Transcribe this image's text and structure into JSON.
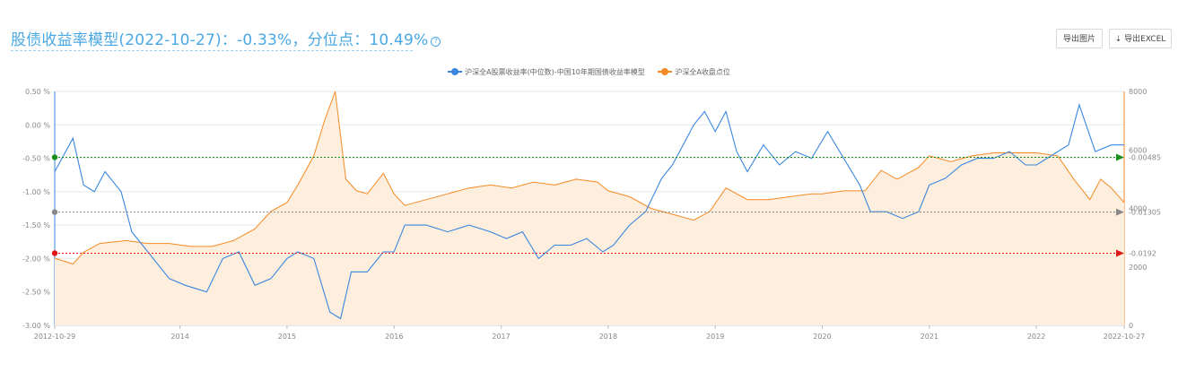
{
  "header": {
    "title_text": "股债收益率模型(2022-10-27)：-0.33%，分位点：10.49%",
    "help_glyph": "?",
    "export_image_label": "导出图片",
    "export_excel_label": "⇣ 导出EXCEL"
  },
  "colors": {
    "series_blue": "#3a87e0",
    "series_orange": "#f58a24",
    "area_fill": "#fdeedd",
    "line_green": "#1a8f1a",
    "line_gray": "#888888",
    "line_red": "#e01818",
    "title": "#4aa8e6"
  },
  "chart_data": {
    "type": "line",
    "x_start_label": "2012-10-29",
    "x_end_label": "2022-10-27",
    "x_ticks": [
      "2012-10-29",
      "2014",
      "2015",
      "2016",
      "2017",
      "2018",
      "2019",
      "2020",
      "2021",
      "2022",
      "2022-10-27"
    ],
    "y_left": {
      "ticks": [
        "0.50 %",
        "0.00 %",
        "-0.50 %",
        "-1.00 %",
        "-1.50 %",
        "-2.00 %",
        "-2.50 %",
        "-3.00 %"
      ],
      "range": [
        -3.0,
        0.5
      ],
      "unit": "%"
    },
    "y_right": {
      "ticks": [
        "8000",
        "6000",
        "4000",
        "2000",
        "0"
      ],
      "range": [
        0,
        8000
      ]
    },
    "legend": [
      "沪深全A股票收益率(中位数)-中国10年期国债收益率模型",
      "沪深全A收盘点位"
    ],
    "series": [
      {
        "name": "沪深全A股票收益率(中位数)-中国10年期国债收益率模型",
        "axis": "left",
        "x": [
          2012.83,
          2013.0,
          2013.1,
          2013.2,
          2013.3,
          2013.45,
          2013.55,
          2013.7,
          2013.9,
          2014.05,
          2014.25,
          2014.4,
          2014.55,
          2014.7,
          2014.85,
          2015.0,
          2015.1,
          2015.25,
          2015.4,
          2015.5,
          2015.6,
          2015.75,
          2015.9,
          2016.0,
          2016.1,
          2016.3,
          2016.5,
          2016.7,
          2016.9,
          2017.05,
          2017.2,
          2017.35,
          2017.5,
          2017.65,
          2017.8,
          2017.95,
          2018.05,
          2018.2,
          2018.35,
          2018.5,
          2018.6,
          2018.7,
          2018.8,
          2018.9,
          2019.0,
          2019.1,
          2019.2,
          2019.3,
          2019.45,
          2019.6,
          2019.75,
          2019.9,
          2020.05,
          2020.2,
          2020.35,
          2020.45,
          2020.6,
          2020.75,
          2020.9,
          2021.0,
          2021.15,
          2021.3,
          2021.45,
          2021.6,
          2021.75,
          2021.9,
          2022.0,
          2022.1,
          2022.2,
          2022.3,
          2022.4,
          2022.55,
          2022.7,
          2022.82
        ],
        "y": [
          -0.7,
          -0.2,
          -0.9,
          -1.0,
          -0.7,
          -1.0,
          -1.6,
          -1.9,
          -2.3,
          -2.4,
          -2.5,
          -2.0,
          -1.9,
          -2.4,
          -2.3,
          -2.0,
          -1.9,
          -2.0,
          -2.8,
          -2.9,
          -2.2,
          -2.2,
          -1.9,
          -1.9,
          -1.5,
          -1.5,
          -1.6,
          -1.5,
          -1.6,
          -1.7,
          -1.6,
          -2.0,
          -1.8,
          -1.8,
          -1.7,
          -1.9,
          -1.8,
          -1.5,
          -1.3,
          -0.8,
          -0.6,
          -0.3,
          0.0,
          0.2,
          -0.1,
          0.2,
          -0.4,
          -0.7,
          -0.3,
          -0.6,
          -0.4,
          -0.5,
          -0.1,
          -0.5,
          -0.9,
          -1.3,
          -1.3,
          -1.4,
          -1.3,
          -0.9,
          -0.8,
          -0.6,
          -0.5,
          -0.5,
          -0.4,
          -0.6,
          -0.6,
          -0.5,
          -0.4,
          -0.3,
          0.3,
          -0.4,
          -0.3,
          -0.3
        ]
      },
      {
        "name": "沪深全A收盘点位",
        "axis": "right",
        "x": [
          2012.83,
          2013.0,
          2013.1,
          2013.25,
          2013.5,
          2013.7,
          2013.9,
          2014.1,
          2014.3,
          2014.5,
          2014.7,
          2014.85,
          2015.0,
          2015.1,
          2015.25,
          2015.35,
          2015.45,
          2015.55,
          2015.65,
          2015.75,
          2015.9,
          2016.0,
          2016.1,
          2016.3,
          2016.5,
          2016.7,
          2016.9,
          2017.1,
          2017.3,
          2017.5,
          2017.7,
          2017.9,
          2018.0,
          2018.2,
          2018.4,
          2018.6,
          2018.8,
          2018.95,
          2019.1,
          2019.3,
          2019.5,
          2019.7,
          2019.9,
          2020.0,
          2020.2,
          2020.4,
          2020.55,
          2020.7,
          2020.9,
          2021.0,
          2021.2,
          2021.4,
          2021.6,
          2021.8,
          2022.0,
          2022.2,
          2022.35,
          2022.5,
          2022.6,
          2022.7,
          2022.82
        ],
        "y": [
          2300,
          2100,
          2500,
          2800,
          2900,
          2800,
          2800,
          2700,
          2700,
          2900,
          3300,
          3900,
          4200,
          4800,
          5800,
          7000,
          8000,
          5000,
          4600,
          4500,
          5200,
          4500,
          4100,
          4300,
          4500,
          4700,
          4800,
          4700,
          4900,
          4800,
          5000,
          4900,
          4600,
          4400,
          4000,
          3800,
          3600,
          3900,
          4700,
          4300,
          4300,
          4400,
          4500,
          4500,
          4600,
          4600,
          5300,
          5000,
          5400,
          5800,
          5600,
          5800,
          5900,
          5900,
          5900,
          5800,
          5000,
          4300,
          5000,
          4700,
          4200
        ]
      }
    ],
    "reference_lines": [
      {
        "label": "-0.00485",
        "value": -0.485,
        "color": "#1a8f1a"
      },
      {
        "label": "-0.01305",
        "value": -1.305,
        "color": "#888888"
      },
      {
        "label": "-0.0192",
        "value": -1.92,
        "color": "#e01818"
      }
    ],
    "grid": true,
    "legend_position": "top-center"
  }
}
